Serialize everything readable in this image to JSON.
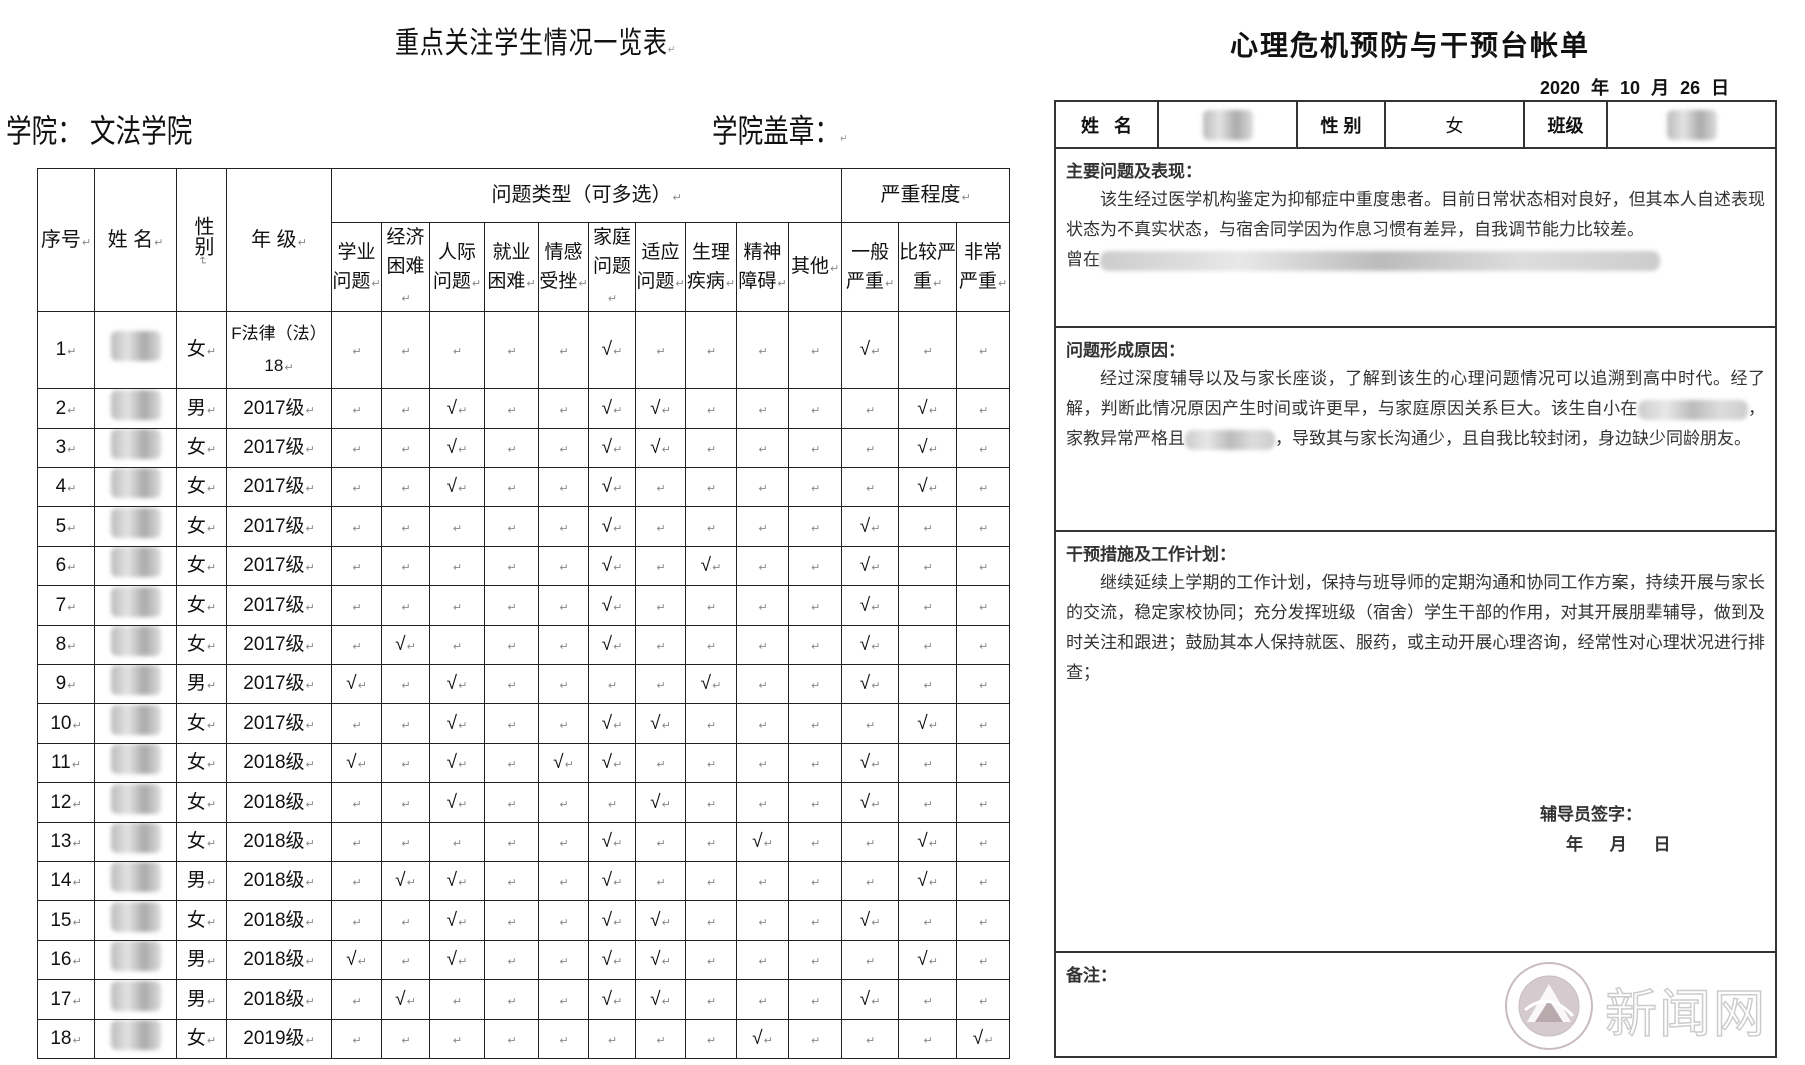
{
  "left_doc": {
    "title": "重点关注学生情况一览表",
    "college_label": "学院：",
    "college_value": "文法学院",
    "seal_label": "学院盖章：",
    "headers": {
      "index": "序号",
      "name": "姓 名",
      "gender": "性别",
      "grade": "年 级",
      "problem_group": "问题类型（可多选）",
      "severity_group": "严重程度",
      "problem_types": [
        "学业问题",
        "经济困难",
        "人际问题",
        "就业困难",
        "情感受挫",
        "家庭问题",
        "适应问题",
        "生理疾病",
        "精神障碍",
        "其他"
      ],
      "severity_levels": [
        "一般严重",
        "比较严重",
        "非常严重"
      ]
    },
    "check_mark": "√",
    "rows": [
      {
        "index": "1",
        "gender": "女",
        "grade": "F法律（法）18",
        "marks": [
          false,
          false,
          false,
          false,
          false,
          true,
          false,
          false,
          false,
          false,
          true,
          false,
          false
        ]
      },
      {
        "index": "2",
        "gender": "男",
        "grade": "2017级",
        "marks": [
          false,
          false,
          true,
          false,
          false,
          true,
          true,
          false,
          false,
          false,
          false,
          true,
          false
        ]
      },
      {
        "index": "3",
        "gender": "女",
        "grade": "2017级",
        "marks": [
          false,
          false,
          true,
          false,
          false,
          true,
          true,
          false,
          false,
          false,
          false,
          true,
          false
        ]
      },
      {
        "index": "4",
        "gender": "女",
        "grade": "2017级",
        "marks": [
          false,
          false,
          true,
          false,
          false,
          true,
          false,
          false,
          false,
          false,
          false,
          true,
          false
        ]
      },
      {
        "index": "5",
        "gender": "女",
        "grade": "2017级",
        "marks": [
          false,
          false,
          false,
          false,
          false,
          true,
          false,
          false,
          false,
          false,
          true,
          false,
          false
        ]
      },
      {
        "index": "6",
        "gender": "女",
        "grade": "2017级",
        "marks": [
          false,
          false,
          false,
          false,
          false,
          true,
          false,
          true,
          false,
          false,
          true,
          false,
          false
        ]
      },
      {
        "index": "7",
        "gender": "女",
        "grade": "2017级",
        "marks": [
          false,
          false,
          false,
          false,
          false,
          true,
          false,
          false,
          false,
          false,
          true,
          false,
          false
        ]
      },
      {
        "index": "8",
        "gender": "女",
        "grade": "2017级",
        "marks": [
          false,
          true,
          false,
          false,
          false,
          true,
          false,
          false,
          false,
          false,
          true,
          false,
          false
        ]
      },
      {
        "index": "9",
        "gender": "男",
        "grade": "2017级",
        "marks": [
          true,
          false,
          true,
          false,
          false,
          false,
          false,
          true,
          false,
          false,
          true,
          false,
          false
        ]
      },
      {
        "index": "10",
        "gender": "女",
        "grade": "2017级",
        "marks": [
          false,
          false,
          true,
          false,
          false,
          true,
          true,
          false,
          false,
          false,
          false,
          true,
          false
        ]
      },
      {
        "index": "11",
        "gender": "女",
        "grade": "2018级",
        "marks": [
          true,
          false,
          true,
          false,
          true,
          true,
          false,
          false,
          false,
          false,
          true,
          false,
          false
        ]
      },
      {
        "index": "12",
        "gender": "女",
        "grade": "2018级",
        "marks": [
          false,
          false,
          true,
          false,
          false,
          false,
          true,
          false,
          false,
          false,
          true,
          false,
          false
        ]
      },
      {
        "index": "13",
        "gender": "女",
        "grade": "2018级",
        "marks": [
          false,
          false,
          false,
          false,
          false,
          true,
          false,
          false,
          true,
          false,
          false,
          true,
          false
        ]
      },
      {
        "index": "14",
        "gender": "男",
        "grade": "2018级",
        "marks": [
          false,
          true,
          true,
          false,
          false,
          true,
          false,
          false,
          false,
          false,
          false,
          true,
          false
        ]
      },
      {
        "index": "15",
        "gender": "女",
        "grade": "2018级",
        "marks": [
          false,
          false,
          true,
          false,
          false,
          true,
          true,
          false,
          false,
          false,
          true,
          false,
          false
        ]
      },
      {
        "index": "16",
        "gender": "男",
        "grade": "2018级",
        "marks": [
          true,
          false,
          true,
          false,
          false,
          true,
          true,
          false,
          false,
          false,
          false,
          true,
          false
        ]
      },
      {
        "index": "17",
        "gender": "男",
        "grade": "2018级",
        "marks": [
          false,
          true,
          false,
          false,
          false,
          true,
          true,
          false,
          false,
          false,
          true,
          false,
          false
        ]
      },
      {
        "index": "18",
        "gender": "女",
        "grade": "2019级",
        "marks": [
          false,
          false,
          false,
          false,
          false,
          false,
          false,
          false,
          true,
          false,
          false,
          false,
          true
        ]
      }
    ]
  },
  "right_doc": {
    "title": "心理危机预防与干预台帐单",
    "date": "2020  年 10 月 26 日",
    "info": {
      "name_label": "姓  名",
      "gender_label": "性  别",
      "gender_value": "女",
      "class_label": "班级"
    },
    "sections": [
      {
        "heading": "主要问题及表现：",
        "body_1": "该生经过医学机构鉴定为抑郁症中重度患者。目前日常状态相对良好，但其本人自述表现状态为不真实状态，与宿舍同学因为作息习惯有差异，自我调节能力比较差。",
        "body_2": "曾在"
      },
      {
        "heading": "问题形成原因：",
        "body_1": "经过深度辅导以及与家长座谈，了解到该生的心理问题情况可以追溯到高中时代。经了解，判断此情况原因产生时间或许更早，与家庭原因关系巨大。该生自小在",
        "body_2": "，家教异常严格且",
        "body_3": "，导致其与家长沟通少，且自我比较封闭，身边缺少同龄朋友。"
      },
      {
        "heading": "干预措施及工作计划：",
        "body_1": "继续延续上学期的工作计划，保持与班导师的定期沟通和协同工作方案，持续开展与家长的交流，稳定家校协同；充分发挥班级（宿舍）学生干部的作用，对其开展朋辈辅导，做到及时关注和跟进；鼓励其本人保持就医、服药，或主动开展心理咨询，经常性对心理状况进行排查；"
      }
    ],
    "signature_label": "辅导员签字：",
    "signature_date": "年 月 日",
    "remarks_label": "备注："
  },
  "watermark": {
    "text": "新闻网",
    "seal_text": "NORTH CHINA UNIVERSITY OF TECHNOLOGY",
    "color": "#c8bcc0"
  }
}
